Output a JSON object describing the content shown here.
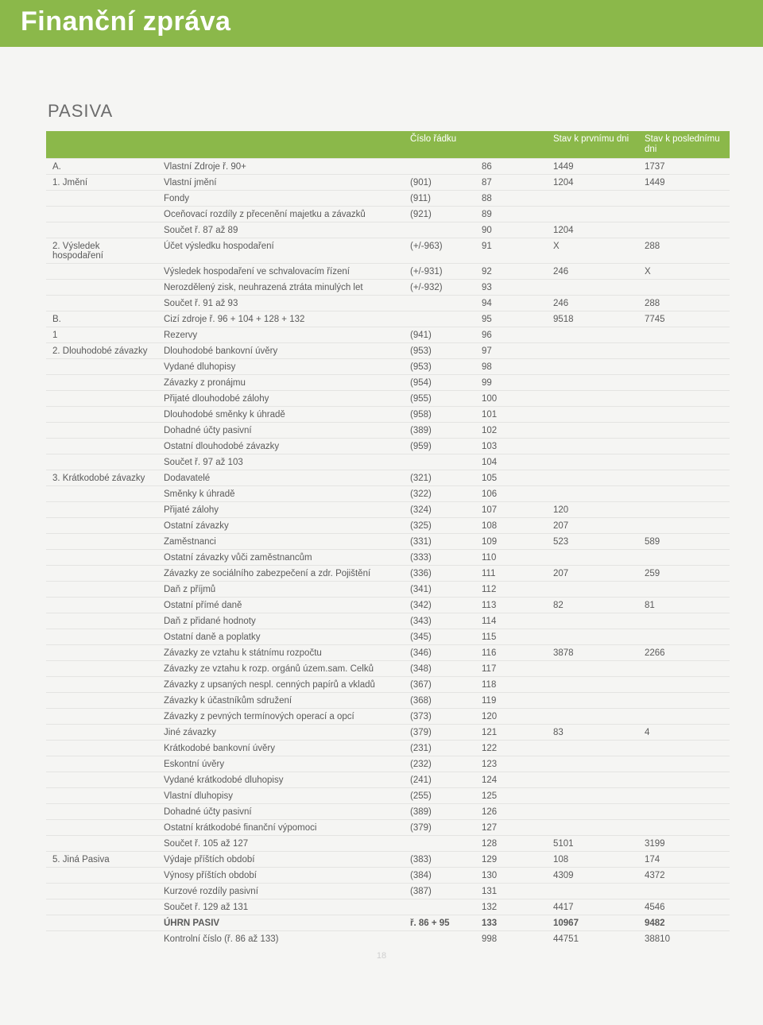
{
  "page_title": "Finanční zpráva",
  "section_heading": "PASIVA",
  "page_number": "18",
  "columns": {
    "col1": "",
    "col2": "",
    "col3": "Číslo řádku",
    "col4": "Stav k prvnímu dni",
    "col5": "Stav k poslednímu dni"
  },
  "rows": [
    {
      "a": "A.",
      "b": "Vlastní Zdroje ř. 90+",
      "c": "",
      "d": "86",
      "e": "1449",
      "f": "1737"
    },
    {
      "a": "1. Jmění",
      "b": "Vlastní jmění",
      "c": "(901)",
      "d": "87",
      "e": "1204",
      "f": "1449"
    },
    {
      "a": "",
      "b": "Fondy",
      "c": "(911)",
      "d": "88",
      "e": "",
      "f": ""
    },
    {
      "a": "",
      "b": "Oceňovací rozdíly z přecenění majetku a závazků",
      "c": "(921)",
      "d": "89",
      "e": "",
      "f": ""
    },
    {
      "a": "",
      "b": "Součet ř. 87 až 89",
      "c": "",
      "d": "90",
      "e": "1204",
      "f": ""
    },
    {
      "a": "2. Výsledek hospodaření",
      "b": "Účet výsledku hospodaření",
      "c": "(+/-963)",
      "d": "91",
      "e": "X",
      "f": "288"
    },
    {
      "a": "",
      "b": "Výsledek hospodaření ve schvalovacím řízení",
      "c": "(+/-931)",
      "d": "92",
      "e": "246",
      "f": "X"
    },
    {
      "a": "",
      "b": "Nerozdělený zisk, neuhrazená ztráta minulých let",
      "c": "(+/-932)",
      "d": "93",
      "e": "",
      "f": ""
    },
    {
      "a": "",
      "b": "Součet ř. 91 až 93",
      "c": "",
      "d": "94",
      "e": "246",
      "f": "288"
    },
    {
      "a": "B.",
      "b": "Cizí zdroje ř. 96 + 104 + 128 + 132",
      "c": "",
      "d": "95",
      "e": "9518",
      "f": "7745"
    },
    {
      "a": "1",
      "b": "Rezervy",
      "c": "(941)",
      "d": "96",
      "e": "",
      "f": ""
    },
    {
      "a": "2. Dlouhodobé závazky",
      "b": "Dlouhodobé bankovní úvěry",
      "c": "(953)",
      "d": "97",
      "e": "",
      "f": ""
    },
    {
      "a": "",
      "b": "Vydané dluhopisy",
      "c": "(953)",
      "d": "98",
      "e": "",
      "f": ""
    },
    {
      "a": "",
      "b": "Závazky z pronájmu",
      "c": "(954)",
      "d": "99",
      "e": "",
      "f": ""
    },
    {
      "a": "",
      "b": "Přijaté dlouhodobé zálohy",
      "c": "(955)",
      "d": "100",
      "e": "",
      "f": ""
    },
    {
      "a": "",
      "b": "Dlouhodobé směnky k úhradě",
      "c": "(958)",
      "d": "101",
      "e": "",
      "f": ""
    },
    {
      "a": "",
      "b": "Dohadné účty pasivní",
      "c": "(389)",
      "d": "102",
      "e": "",
      "f": ""
    },
    {
      "a": "",
      "b": "Ostatní dlouhodobé závazky",
      "c": "(959)",
      "d": "103",
      "e": "",
      "f": ""
    },
    {
      "a": "",
      "b": "Součet ř. 97 až 103",
      "c": "",
      "d": "104",
      "e": "",
      "f": ""
    },
    {
      "a": "3. Krátkodobé závazky",
      "b": "Dodavatelé",
      "c": "(321)",
      "d": "105",
      "e": "",
      "f": ""
    },
    {
      "a": "",
      "b": "Směnky k úhradě",
      "c": "(322)",
      "d": "106",
      "e": "",
      "f": ""
    },
    {
      "a": "",
      "b": "Přijaté zálohy",
      "c": "(324)",
      "d": "107",
      "e": "120",
      "f": ""
    },
    {
      "a": "",
      "b": "Ostatní závazky",
      "c": "(325)",
      "d": "108",
      "e": "207",
      "f": ""
    },
    {
      "a": "",
      "b": "Zaměstnanci",
      "c": "(331)",
      "d": "109",
      "e": "523",
      "f": "589"
    },
    {
      "a": "",
      "b": "Ostatní závazky vůči zaměstnancům",
      "c": "(333)",
      "d": "110",
      "e": "",
      "f": ""
    },
    {
      "a": "",
      "b": "Závazky ze sociálního zabezpečení a zdr. Pojištění",
      "c": "(336)",
      "d": "111",
      "e": "207",
      "f": "259"
    },
    {
      "a": "",
      "b": "Daň z příjmů",
      "c": "(341)",
      "d": "112",
      "e": "",
      "f": ""
    },
    {
      "a": "",
      "b": "Ostatní přímé daně",
      "c": "(342)",
      "d": "113",
      "e": "82",
      "f": "81"
    },
    {
      "a": "",
      "b": "Daň z přidané hodnoty",
      "c": "(343)",
      "d": "114",
      "e": "",
      "f": ""
    },
    {
      "a": "",
      "b": "Ostatní daně a poplatky",
      "c": "(345)",
      "d": "115",
      "e": "",
      "f": ""
    },
    {
      "a": "",
      "b": "Závazky ze vztahu k státnímu rozpočtu",
      "c": "(346)",
      "d": "116",
      "e": "3878",
      "f": "2266"
    },
    {
      "a": "",
      "b": "Závazky ze vztahu k rozp. orgánů územ.sam. Celků",
      "c": "(348)",
      "d": "117",
      "e": "",
      "f": ""
    },
    {
      "a": "",
      "b": "Závazky z upsaných nespl. cenných papírů a vkladů",
      "c": "(367)",
      "d": "118",
      "e": "",
      "f": ""
    },
    {
      "a": "",
      "b": "Závazky k účastníkům sdružení",
      "c": "(368)",
      "d": "119",
      "e": "",
      "f": ""
    },
    {
      "a": "",
      "b": "Závazky z pevných termínových operací a opcí",
      "c": "(373)",
      "d": "120",
      "e": "",
      "f": ""
    },
    {
      "a": "",
      "b": "Jiné závazky",
      "c": "(379)",
      "d": "121",
      "e": "83",
      "f": "4"
    },
    {
      "a": "",
      "b": "Krátkodobé bankovní úvěry",
      "c": "(231)",
      "d": "122",
      "e": "",
      "f": ""
    },
    {
      "a": "",
      "b": "Eskontní úvěry",
      "c": "(232)",
      "d": "123",
      "e": "",
      "f": ""
    },
    {
      "a": "",
      "b": "Vydané krátkodobé dluhopisy",
      "c": "(241)",
      "d": "124",
      "e": "",
      "f": ""
    },
    {
      "a": "",
      "b": "Vlastní dluhopisy",
      "c": "(255)",
      "d": "125",
      "e": "",
      "f": ""
    },
    {
      "a": "",
      "b": "Dohadné účty pasivní",
      "c": "(389)",
      "d": "126",
      "e": "",
      "f": ""
    },
    {
      "a": "",
      "b": "Ostatní krátkodobé finanční výpomoci",
      "c": "(379)",
      "d": "127",
      "e": "",
      "f": ""
    },
    {
      "a": "",
      "b": "Součet ř. 105 až 127",
      "c": "",
      "d": "128",
      "e": "5101",
      "f": "3199"
    },
    {
      "a": "5. Jiná Pasiva",
      "b": "Výdaje příštích období",
      "c": "(383)",
      "d": "129",
      "e": "108",
      "f": "174"
    },
    {
      "a": "",
      "b": "Výnosy příštích období",
      "c": "(384)",
      "d": "130",
      "e": "4309",
      "f": "4372"
    },
    {
      "a": "",
      "b": "Kurzové rozdíly pasivní",
      "c": "(387)",
      "d": "131",
      "e": "",
      "f": ""
    },
    {
      "a": "",
      "b": "Součet ř. 129 až 131",
      "c": "",
      "d": "132",
      "e": "4417",
      "f": "4546"
    },
    {
      "a": "",
      "b": "ÚHRN PASIV",
      "c": "ř. 86 + 95",
      "d": "133",
      "e": "10967",
      "f": "9482",
      "bold": true
    },
    {
      "a": "",
      "b": "Kontrolní číslo (ř. 86 až 133)",
      "c": "",
      "d": "998",
      "e": "44751",
      "f": "38810"
    }
  ]
}
